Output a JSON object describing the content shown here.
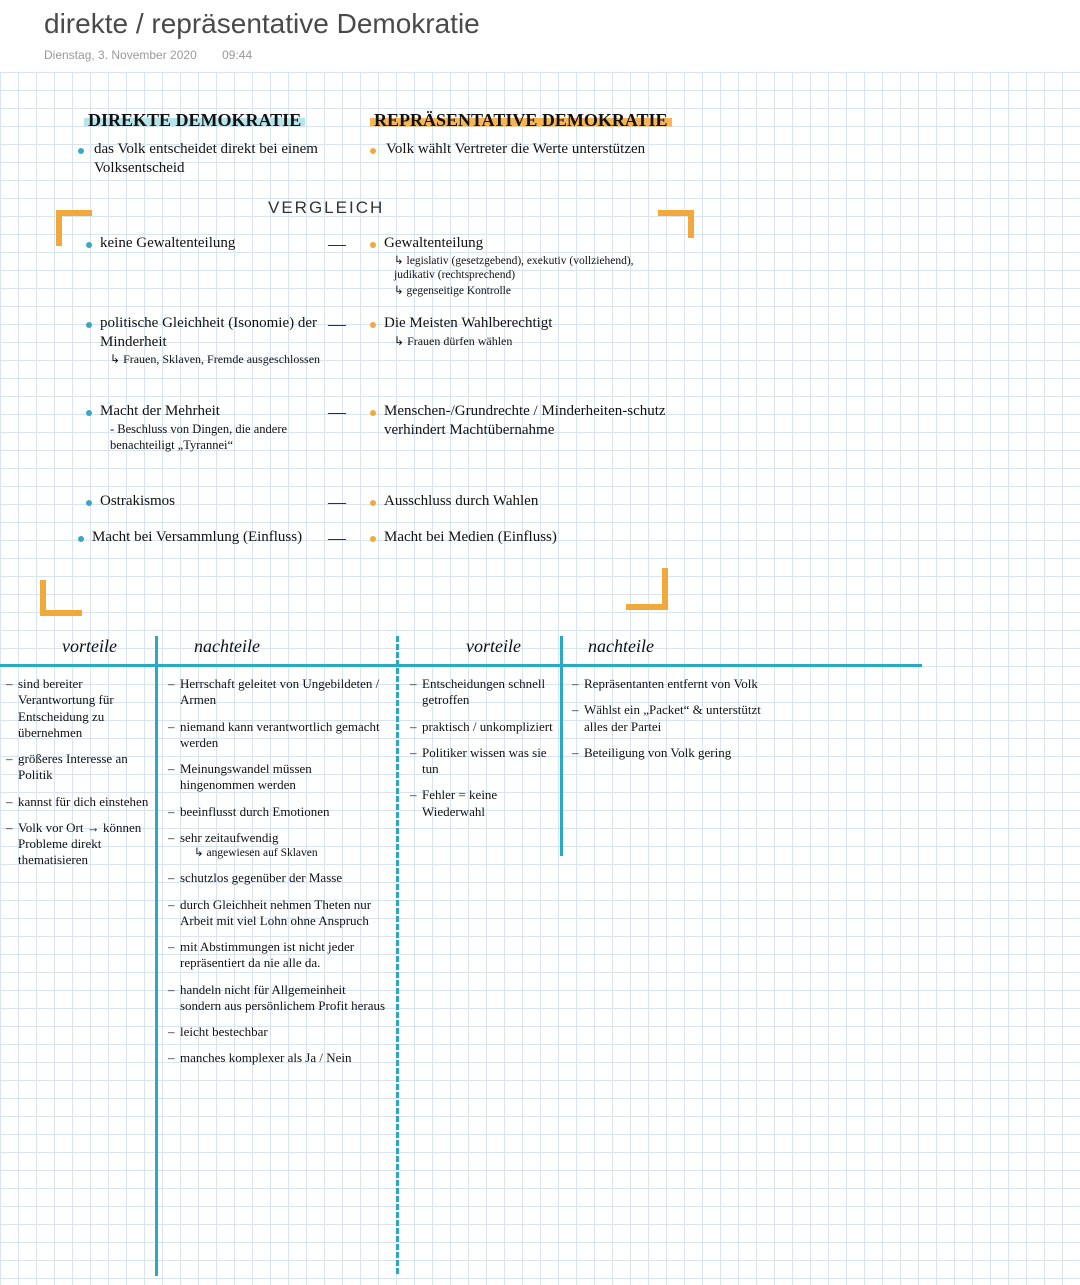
{
  "colors": {
    "grid": "#d8e4ef",
    "highlight_blue": "#b7e3ea",
    "highlight_orange": "#f5b555",
    "bullet_blue": "#3aa7c4",
    "bullet_orange": "#f0a93a",
    "teal": "#2ba8c4",
    "text": "#111111",
    "title": "#4a4a4a",
    "meta": "#9a9a9a",
    "bg": "#ffffff"
  },
  "header": {
    "title": "direkte / repräsentative Demokratie",
    "date": "Dienstag, 3. November 2020",
    "time": "09:44"
  },
  "left": {
    "title": "DIREKTE DEMOKRATIE",
    "intro": "das Volk entscheidet direkt bei einem Volksentscheid",
    "rows": [
      {
        "main": "keine Gewaltenteilung"
      },
      {
        "main": "politische Gleichheit (Isonomie) der Minderheit",
        "sub": "Frauen, Sklaven, Fremde ausgeschlossen"
      },
      {
        "main": "Macht der Mehrheit",
        "note": "- Beschluss von Dingen, die andere benachteiligt „Tyrannei“"
      },
      {
        "main": "Ostrakismos"
      },
      {
        "main": "Macht bei Versammlung (Einfluss)"
      }
    ]
  },
  "right": {
    "title": "REPRÄSENTATIVE  DEMOKRATIE",
    "intro": "Volk wählt Vertreter die Werte unterstützen",
    "rows": [
      {
        "main": "Gewaltenteilung",
        "sub1": "legislativ (gesetzgebend), exekutiv (vollziehend), judikativ (rechtsprechend)",
        "sub2": "gegenseitige Kontrolle"
      },
      {
        "main": "Die Meisten Wahlberechtigt",
        "sub1": "Frauen dürfen wählen"
      },
      {
        "main": "Menschen-/Grundrechte / Minderheiten-schutz verhindert Machtübernahme"
      },
      {
        "main": "Ausschluss durch Wahlen"
      },
      {
        "main": "Macht bei Medien (Einfluss)"
      }
    ]
  },
  "vergleich_label": "VERGLEICH",
  "tables": {
    "headers": {
      "vorteile": "vorteile",
      "nachteile": "nachteile"
    },
    "left": {
      "vorteile": [
        "sind bereiter Verantwortung für Entscheidung zu übernehmen",
        "größeres Interesse an Politik",
        "kannst für dich einstehen",
        "Volk vor Ort → können Probleme direkt thematisieren"
      ],
      "nachteile": [
        "Herrschaft geleitet von Ungebildeten / Armen",
        "niemand kann verantwortlich gemacht werden",
        "Meinungswandel müssen hingenommen werden",
        "beeinflusst durch Emotionen",
        "sehr zeitaufwendig|angewiesen auf Sklaven",
        "schutzlos gegenüber der Masse",
        "durch Gleichheit nehmen Theten nur Arbeit mit viel Lohn ohne Anspruch",
        "mit Abstimmungen ist nicht jeder repräsentiert da nie alle da.",
        "handeln nicht für Allgemeinheit sondern aus persönlichem Profit heraus",
        "leicht bestechbar",
        "manches komplexer als Ja / Nein"
      ]
    },
    "right": {
      "vorteile": [
        "Entscheidungen schnell getroffen",
        "praktisch / unkompliziert",
        "Politiker wissen was sie tun",
        "Fehler = keine Wiederwahl"
      ],
      "nachteile": [
        "Repräsentanten entfernt von Volk",
        "Wählst ein „Packet“ & unterstützt alles der Partei",
        "Beteiligung von Volk gering"
      ]
    }
  }
}
